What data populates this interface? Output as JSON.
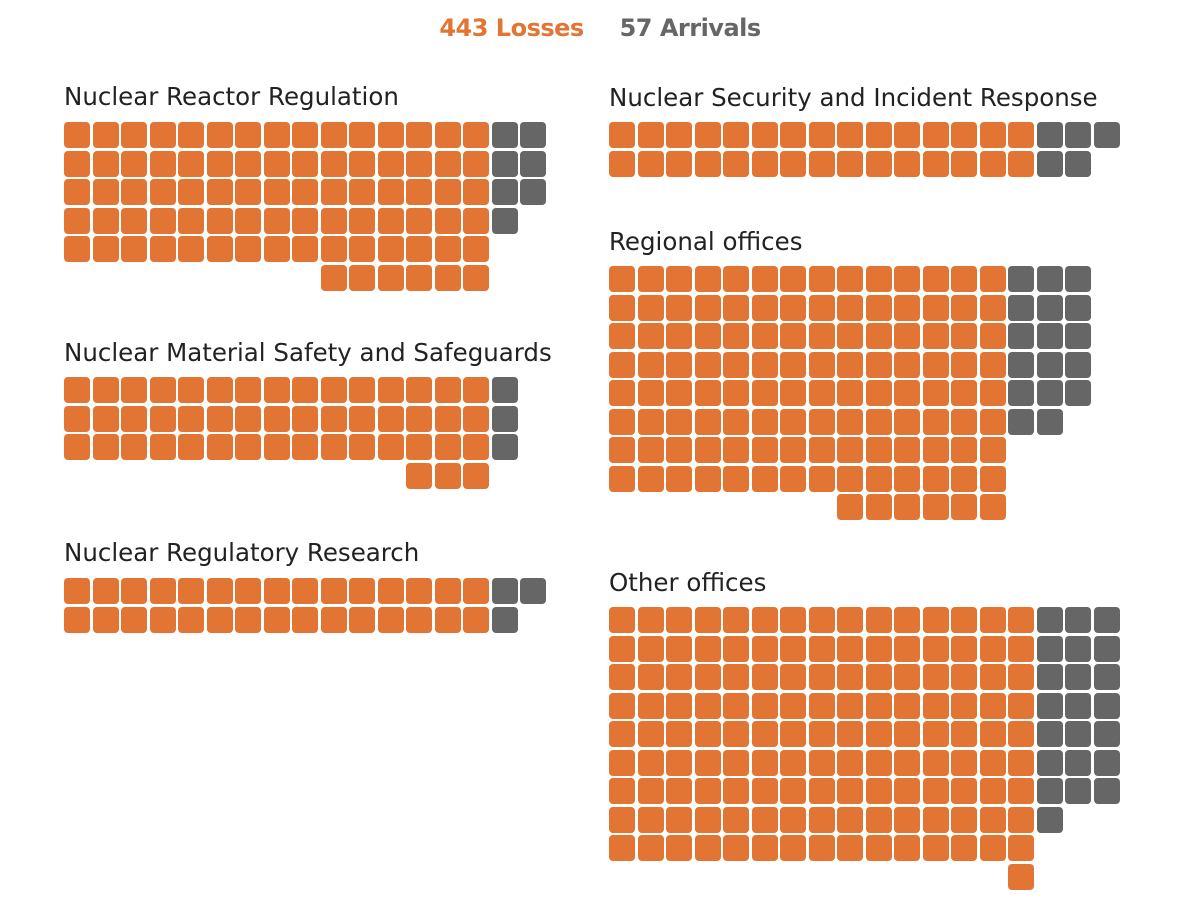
{
  "legend": {
    "losses_label": "443 Losses",
    "arrivals_label": "57 Arrivals"
  },
  "colors": {
    "losses": "#E27534",
    "arrivals": "#666666"
  },
  "chart_data": {
    "type": "waffle",
    "title": "",
    "units": "",
    "series": [
      "Losses",
      "Arrivals"
    ],
    "totals": {
      "losses": 443,
      "arrivals": 57
    },
    "panels": [
      {
        "name": "Nuclear Reactor Regulation",
        "losses": 81,
        "arrivals": 7
      },
      {
        "name": "Nuclear Material Safety and Safeguards",
        "losses": 48,
        "arrivals": 3
      },
      {
        "name": "Nuclear Regulatory Research",
        "losses": 30,
        "arrivals": 3
      },
      {
        "name": "Nuclear Security and Incident Response",
        "losses": 30,
        "arrivals": 5
      },
      {
        "name": "Regional offices",
        "losses": 118,
        "arrivals": 17
      },
      {
        "name": "Other offices",
        "losses": 136,
        "arrivals": 22
      }
    ]
  }
}
